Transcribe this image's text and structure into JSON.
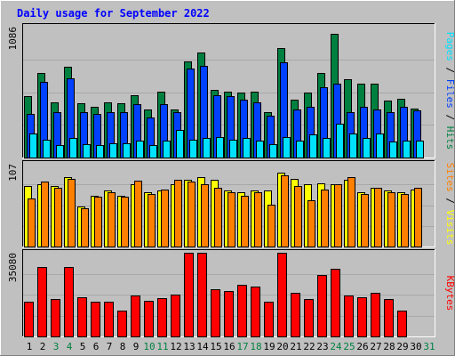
{
  "chart_data": {
    "type": "bar",
    "title": "Daily usage for September 2022",
    "categories": [
      "1",
      "2",
      "3",
      "4",
      "5",
      "6",
      "7",
      "8",
      "9",
      "10",
      "11",
      "12",
      "13",
      "14",
      "15",
      "16",
      "17",
      "18",
      "19",
      "20",
      "21",
      "22",
      "23",
      "24",
      "25",
      "26",
      "27",
      "28",
      "29",
      "30",
      "31"
    ],
    "weekend_days": [
      "3",
      "4",
      "10",
      "11",
      "17",
      "18",
      "24",
      "25",
      "31"
    ],
    "panels": [
      {
        "id": "requests",
        "max_label": "1086",
        "ymax": 1086,
        "legend": [
          "Pages",
          "Files",
          "Hits"
        ],
        "series": [
          {
            "name": "Hits",
            "color": "#008040",
            "values": [
              510,
              700,
              460,
              750,
              450,
              420,
              460,
              450,
              520,
              400,
              550,
              400,
              800,
              870,
              560,
              550,
              540,
              550,
              380,
              910,
              480,
              540,
              700,
              1030,
              650,
              610,
              610,
              470,
              490,
              410,
              0
            ]
          },
          {
            "name": "Files",
            "color": "#0040ff",
            "values": [
              360,
              630,
              380,
              660,
              380,
              360,
              380,
              380,
              440,
              330,
              440,
              380,
              740,
              760,
              520,
              510,
              480,
              460,
              350,
              790,
              400,
              420,
              580,
              610,
              380,
              420,
              400,
              380,
              420,
              390,
              0
            ]
          },
          {
            "name": "Pages",
            "color": "#00e0ff",
            "values": [
              200,
              150,
              100,
              160,
              110,
              100,
              120,
              120,
              140,
              100,
              140,
              230,
              150,
              160,
              170,
              150,
              160,
              140,
              110,
              170,
              140,
              190,
              160,
              280,
              200,
              160,
              200,
              130,
              140,
              140,
              0
            ]
          }
        ]
      },
      {
        "id": "visits",
        "max_label": "107",
        "ymax": 107,
        "legend": [
          "Sites",
          "Visits"
        ],
        "series": [
          {
            "name": "Visits",
            "color": "#ffff00",
            "values": [
              78,
              80,
              78,
              90,
              52,
              66,
              72,
              66,
              80,
              70,
              72,
              80,
              86,
              90,
              86,
              72,
              70,
              72,
              72,
              96,
              88,
              80,
              82,
              80,
              86,
              70,
              76,
              72,
              70,
              74,
              0
            ]
          },
          {
            "name": "Sites",
            "color": "#ff8000",
            "values": [
              62,
              84,
              76,
              88,
              50,
              64,
              70,
              64,
              85,
              68,
              74,
              86,
              84,
              80,
              76,
              70,
              66,
              70,
              54,
              92,
              78,
              60,
              74,
              80,
              90,
              68,
              76,
              70,
              68,
              76,
              0
            ]
          }
        ]
      },
      {
        "id": "kbytes",
        "max_label": "35080",
        "ymax": 35080,
        "legend": [
          "KBytes"
        ],
        "series": [
          {
            "name": "KBytes",
            "color": "#ff0000",
            "values": [
              14500,
              29000,
              15600,
              29000,
              16400,
              14400,
              14400,
              10800,
              17200,
              14900,
              16000,
              17500,
              35080,
              35080,
              19800,
              18900,
              21800,
              20800,
              14400,
              35080,
              18200,
              15700,
              25700,
              28500,
              17200,
              16400,
              18400,
              15600,
              10800,
              0,
              0
            ]
          }
        ]
      }
    ]
  }
}
